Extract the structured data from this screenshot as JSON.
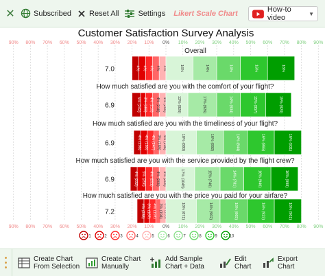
{
  "toolbar": {
    "subscribed_label": "Subscribed",
    "reset_label": "Reset All",
    "settings_label": "Settings",
    "chart_title": "Likert Scale Chart",
    "howto_label": "How-to video"
  },
  "chart_data": {
    "type": "bar",
    "title": "Customer Satisfaction Survey Analysis",
    "axis_ticks": [
      "90%",
      "80%",
      "70%",
      "60%",
      "50%",
      "40%",
      "30%",
      "20%",
      "10%",
      "0%",
      "10%",
      "20%",
      "30%",
      "40%",
      "50%",
      "60%",
      "70%",
      "80%",
      "90%"
    ],
    "scale_labels": [
      "1",
      "2",
      "3",
      "4",
      "5",
      "6",
      "7",
      "8",
      "9",
      "10"
    ],
    "colors": {
      "negative": [
        "#c00000",
        "#e00000",
        "#ff2a2a",
        "#ff6666",
        "#ffb3b3"
      ],
      "positive": [
        "#d8f5d8",
        "#a6eaa6",
        "#6ad96a",
        "#2ec72e",
        "#009e00"
      ]
    },
    "rows": [
      {
        "question": "Overall",
        "score": "7.0",
        "labels": [
          "4%",
          "4%",
          "4%",
          "4%",
          "4%",
          "16%",
          "14%",
          "14%",
          "16%",
          "16%"
        ],
        "values": [
          4,
          4,
          4,
          4,
          4,
          16,
          14,
          14,
          16,
          16
        ]
      },
      {
        "question": "How much satisfied are you with the comfort of your flight?",
        "score": "6.9",
        "labels": [
          "5% (242)",
          "3% (183)",
          "4% (213)",
          "4% (218)",
          "4% (255)",
          "13% (826)",
          "17% (826)",
          "14% (834)",
          "15% (857)",
          "15% (820)"
        ],
        "values": [
          5,
          3,
          4,
          4,
          4,
          13,
          17,
          14,
          15,
          15
        ]
      },
      {
        "question": "How much satisfied are you with the timeliness of your flight?",
        "score": "6.9",
        "labels": [
          "4% (208)",
          "4% (189)",
          "4% (247)",
          "3% (189)",
          "4% (206)",
          "18% (880)",
          "16% (892)",
          "14% (844)",
          "16% (865)",
          "16% (931)"
        ],
        "values": [
          4,
          4,
          4,
          3,
          4,
          18,
          16,
          14,
          16,
          16
        ]
      },
      {
        "question": "How much satisfied are you with the service provided by the flight crew?",
        "score": "6.9",
        "labels": [
          "4% (232)",
          "5% (256)",
          "4% (231)",
          "4% (205)",
          "4% (205)",
          "17% (1045)",
          "15% (746)",
          "14% (781)",
          "16% (946)",
          "16% (998)"
        ],
        "values": [
          4,
          5,
          4,
          4,
          4,
          17,
          15,
          14,
          16,
          16
        ]
      },
      {
        "question": "How much satisfied are you with the price you paid for your airfare?",
        "score": "7.2",
        "labels": [
          "4% (238)",
          "3% (187)",
          "4% (197)",
          "3% (194)",
          "3% (195)",
          "18% (871)",
          "14% (902)",
          "16% (865)",
          "16% (923)",
          "16% (961)"
        ],
        "values": [
          4,
          3,
          4,
          3,
          3,
          18,
          14,
          16,
          16,
          16
        ]
      }
    ]
  },
  "bottom": {
    "create_chart": "Create Chart From Selection",
    "create_manually": "Create Chart Manually",
    "add_sample": "Add Sample Chart + Data",
    "edit_chart": "Edit Chart",
    "export_chart": "Export Chart"
  }
}
